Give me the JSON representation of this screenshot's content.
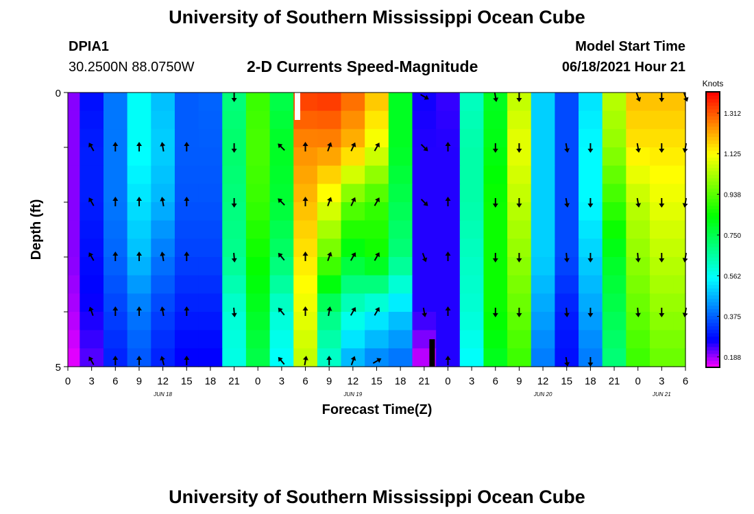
{
  "header": {
    "title": "University of Southern Mississippi Ocean Cube",
    "station_id": "DPIA1",
    "station_coords": "30.2500N  88.0750W",
    "plot_title": "2-D Currents Speed-Magnitude",
    "model_label": "Model Start Time",
    "model_time": "06/18/2021 Hour 21"
  },
  "footer": {
    "title": "University of Southern Mississippi Ocean Cube"
  },
  "chart_data": {
    "type": "heatmap",
    "title": "2-D Currents Speed-Magnitude",
    "xlabel": "Forecast Time(Z)",
    "ylabel": "Depth (ft)",
    "x_hours": [
      0,
      3,
      6,
      9,
      12,
      15,
      18,
      21,
      24,
      27,
      30,
      33,
      36,
      39,
      42,
      45,
      48,
      51,
      54,
      57,
      60,
      63,
      66,
      69,
      72,
      75,
      78
    ],
    "x_tick_labels": [
      "0",
      "3",
      "6",
      "9",
      "12",
      "15",
      "18",
      "21",
      "0",
      "3",
      "6",
      "9",
      "12",
      "15",
      "18",
      "21",
      "0",
      "3",
      "6",
      "9",
      "12",
      "15",
      "18",
      "21",
      "0",
      "3",
      "6"
    ],
    "day_labels": [
      {
        "hour": 12,
        "text": "JUN 18"
      },
      {
        "hour": 36,
        "text": "JUN 19"
      },
      {
        "hour": 60,
        "text": "JUN 20"
      },
      {
        "hour": 75,
        "text": "JUN 21"
      }
    ],
    "y_range": [
      0,
      5
    ],
    "y_tick_labels": [
      "0",
      "5"
    ],
    "depth_rows": 5,
    "colorbar": {
      "unit": "Knots",
      "min": 0.14,
      "max": 1.41,
      "tick_values": [
        0.188,
        0.375,
        0.562,
        0.75,
        0.938,
        1.125,
        1.312
      ],
      "tick_labels": [
        "0.188",
        "0.375",
        "0.562",
        "0.750",
        "0.938",
        "1.125",
        "1.312"
      ]
    },
    "speed_rows": [
      [
        0.2,
        0.28,
        0.4,
        0.56,
        0.48,
        0.37,
        0.38,
        0.7,
        0.9,
        0.75,
        1.35,
        1.36,
        1.3,
        1.2,
        0.8,
        0.26,
        0.24,
        0.62,
        0.8,
        1.05,
        0.5,
        0.35,
        0.52,
        1.05,
        1.2,
        1.2,
        1.2
      ],
      [
        0.2,
        0.3,
        0.4,
        0.56,
        0.5,
        0.37,
        0.37,
        0.72,
        0.92,
        0.8,
        1.25,
        1.25,
        1.2,
        1.1,
        0.8,
        0.25,
        0.25,
        0.65,
        0.82,
        1.1,
        0.5,
        0.35,
        0.55,
        1.0,
        1.15,
        1.15,
        1.15
      ],
      [
        0.2,
        0.3,
        0.4,
        0.52,
        0.47,
        0.36,
        0.36,
        0.7,
        0.9,
        0.78,
        1.2,
        1.1,
        0.95,
        0.9,
        0.75,
        0.25,
        0.25,
        0.65,
        0.85,
        1.05,
        0.5,
        0.35,
        0.55,
        0.9,
        1.05,
        1.1,
        1.1
      ],
      [
        0.2,
        0.28,
        0.38,
        0.48,
        0.4,
        0.34,
        0.34,
        0.68,
        0.85,
        0.72,
        1.15,
        0.95,
        0.8,
        0.85,
        0.7,
        0.25,
        0.25,
        0.62,
        0.85,
        1.0,
        0.5,
        0.35,
        0.5,
        0.8,
        1.0,
        1.05,
        1.05
      ],
      [
        0.18,
        0.26,
        0.34,
        0.4,
        0.34,
        0.3,
        0.3,
        0.6,
        0.8,
        0.6,
        1.1,
        0.7,
        0.6,
        0.55,
        0.5,
        0.25,
        0.25,
        0.6,
        0.85,
        0.95,
        0.45,
        0.3,
        0.45,
        0.75,
        0.95,
        1.0,
        1.0
      ],
      [
        0.15,
        0.22,
        0.3,
        0.36,
        0.3,
        0.26,
        0.26,
        0.58,
        0.75,
        0.55,
        1.05,
        0.6,
        0.45,
        0.4,
        0.38,
        0.16,
        0.25,
        0.55,
        0.8,
        0.9,
        0.4,
        0.28,
        0.4,
        0.7,
        0.9,
        0.95,
        0.95
      ]
    ],
    "arrows": {
      "hours": [
        0,
        3,
        6,
        9,
        12,
        15,
        18,
        21,
        24,
        27,
        30,
        33,
        36,
        39,
        42,
        45,
        48,
        51,
        54,
        57,
        60,
        63,
        66,
        69,
        72,
        75,
        78
      ],
      "rows": [
        [
          null,
          null,
          null,
          null,
          null,
          null,
          null,
          180,
          null,
          null,
          null,
          null,
          null,
          null,
          null,
          120,
          null,
          null,
          170,
          180,
          null,
          null,
          null,
          null,
          160,
          180,
          160
        ],
        [
          null,
          330,
          0,
          0,
          350,
          0,
          null,
          180,
          null,
          315,
          0,
          20,
          25,
          30,
          null,
          135,
          0,
          null,
          180,
          180,
          null,
          170,
          180,
          null,
          170,
          180,
          190
        ],
        [
          null,
          330,
          0,
          0,
          350,
          0,
          null,
          180,
          null,
          315,
          0,
          20,
          25,
          30,
          null,
          135,
          0,
          null,
          180,
          180,
          null,
          170,
          180,
          null,
          170,
          180,
          190
        ],
        [
          null,
          330,
          0,
          0,
          350,
          0,
          null,
          175,
          null,
          320,
          0,
          20,
          30,
          30,
          null,
          160,
          0,
          null,
          180,
          180,
          null,
          175,
          180,
          null,
          175,
          180,
          190
        ],
        [
          null,
          340,
          0,
          0,
          350,
          0,
          null,
          175,
          null,
          320,
          0,
          10,
          30,
          30,
          null,
          170,
          0,
          null,
          180,
          180,
          null,
          175,
          180,
          null,
          175,
          180,
          190
        ],
        [
          null,
          330,
          0,
          0,
          345,
          0,
          null,
          null,
          null,
          320,
          10,
          0,
          20,
          60,
          null,
          null,
          0,
          null,
          null,
          null,
          null,
          170,
          180,
          null,
          null,
          null,
          null
        ]
      ]
    },
    "gap_markers": [
      {
        "hour": 29,
        "row": 0,
        "color": "#ffffff"
      },
      {
        "hour": 46,
        "row": 5,
        "color": "#000000"
      }
    ]
  }
}
